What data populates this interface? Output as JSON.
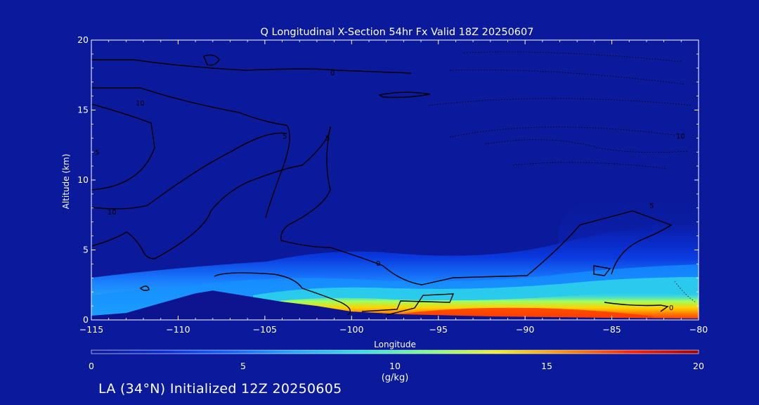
{
  "chart_data": {
    "type": "heatmap",
    "title": "Q Longitudinal X-Section 54hr  Fx Valid 18Z 20250607",
    "xlabel": "Longitude",
    "ylabel": "Altitude (km)",
    "xlim": [
      -115,
      -80
    ],
    "ylim": [
      0,
      20
    ],
    "x_ticks": [
      -115,
      -110,
      -105,
      -100,
      -95,
      -90,
      -85,
      -80
    ],
    "x_tick_labels": [
      "−115",
      "−110",
      "−105",
      "−100",
      "−95",
      "−90",
      "−85",
      "−80"
    ],
    "y_ticks": [
      0,
      5,
      10,
      15,
      20
    ],
    "colorbar": {
      "label": "(g/kg)",
      "range": [
        0,
        20
      ],
      "ticks": [
        0,
        5,
        10,
        15,
        20
      ],
      "colors": [
        "#0a1a9a",
        "#0a2ad0",
        "#1060ff",
        "#20a8ff",
        "#30e0e0",
        "#80ff80",
        "#f0f020",
        "#ff9000",
        "#ff2000",
        "#a00000"
      ]
    },
    "terrain_top_km": [
      {
        "lon": -115,
        "alt": 0.3
      },
      {
        "lon": -113,
        "alt": 0.5
      },
      {
        "lon": -111,
        "alt": 1.2
      },
      {
        "lon": -109,
        "alt": 1.9
      },
      {
        "lon": -108,
        "alt": 2.1
      },
      {
        "lon": -106,
        "alt": 1.7
      },
      {
        "lon": -104,
        "alt": 1.3
      },
      {
        "lon": -102,
        "alt": 1.0
      },
      {
        "lon": -100,
        "alt": 0.6
      },
      {
        "lon": -97,
        "alt": 0.4
      },
      {
        "lon": -92,
        "alt": 0.25
      },
      {
        "lon": -85,
        "alt": 0.15
      },
      {
        "lon": -80,
        "alt": 0.1
      }
    ],
    "moisture_max_g_per_kg": [
      {
        "lon": -115,
        "q": 6
      },
      {
        "lon": -110,
        "q": 7
      },
      {
        "lon": -105,
        "q": 9
      },
      {
        "lon": -103,
        "q": 14
      },
      {
        "lon": -100,
        "q": 15
      },
      {
        "lon": -95,
        "q": 16
      },
      {
        "lon": -90,
        "q": 17
      },
      {
        "lon": -85,
        "q": 16
      },
      {
        "lon": -80,
        "q": 13
      }
    ],
    "contour_labels": [
      "0",
      "10",
      "5",
      "-5",
      "-10"
    ]
  },
  "footer": "LA (34°N) Initialized 12Z 20250605"
}
